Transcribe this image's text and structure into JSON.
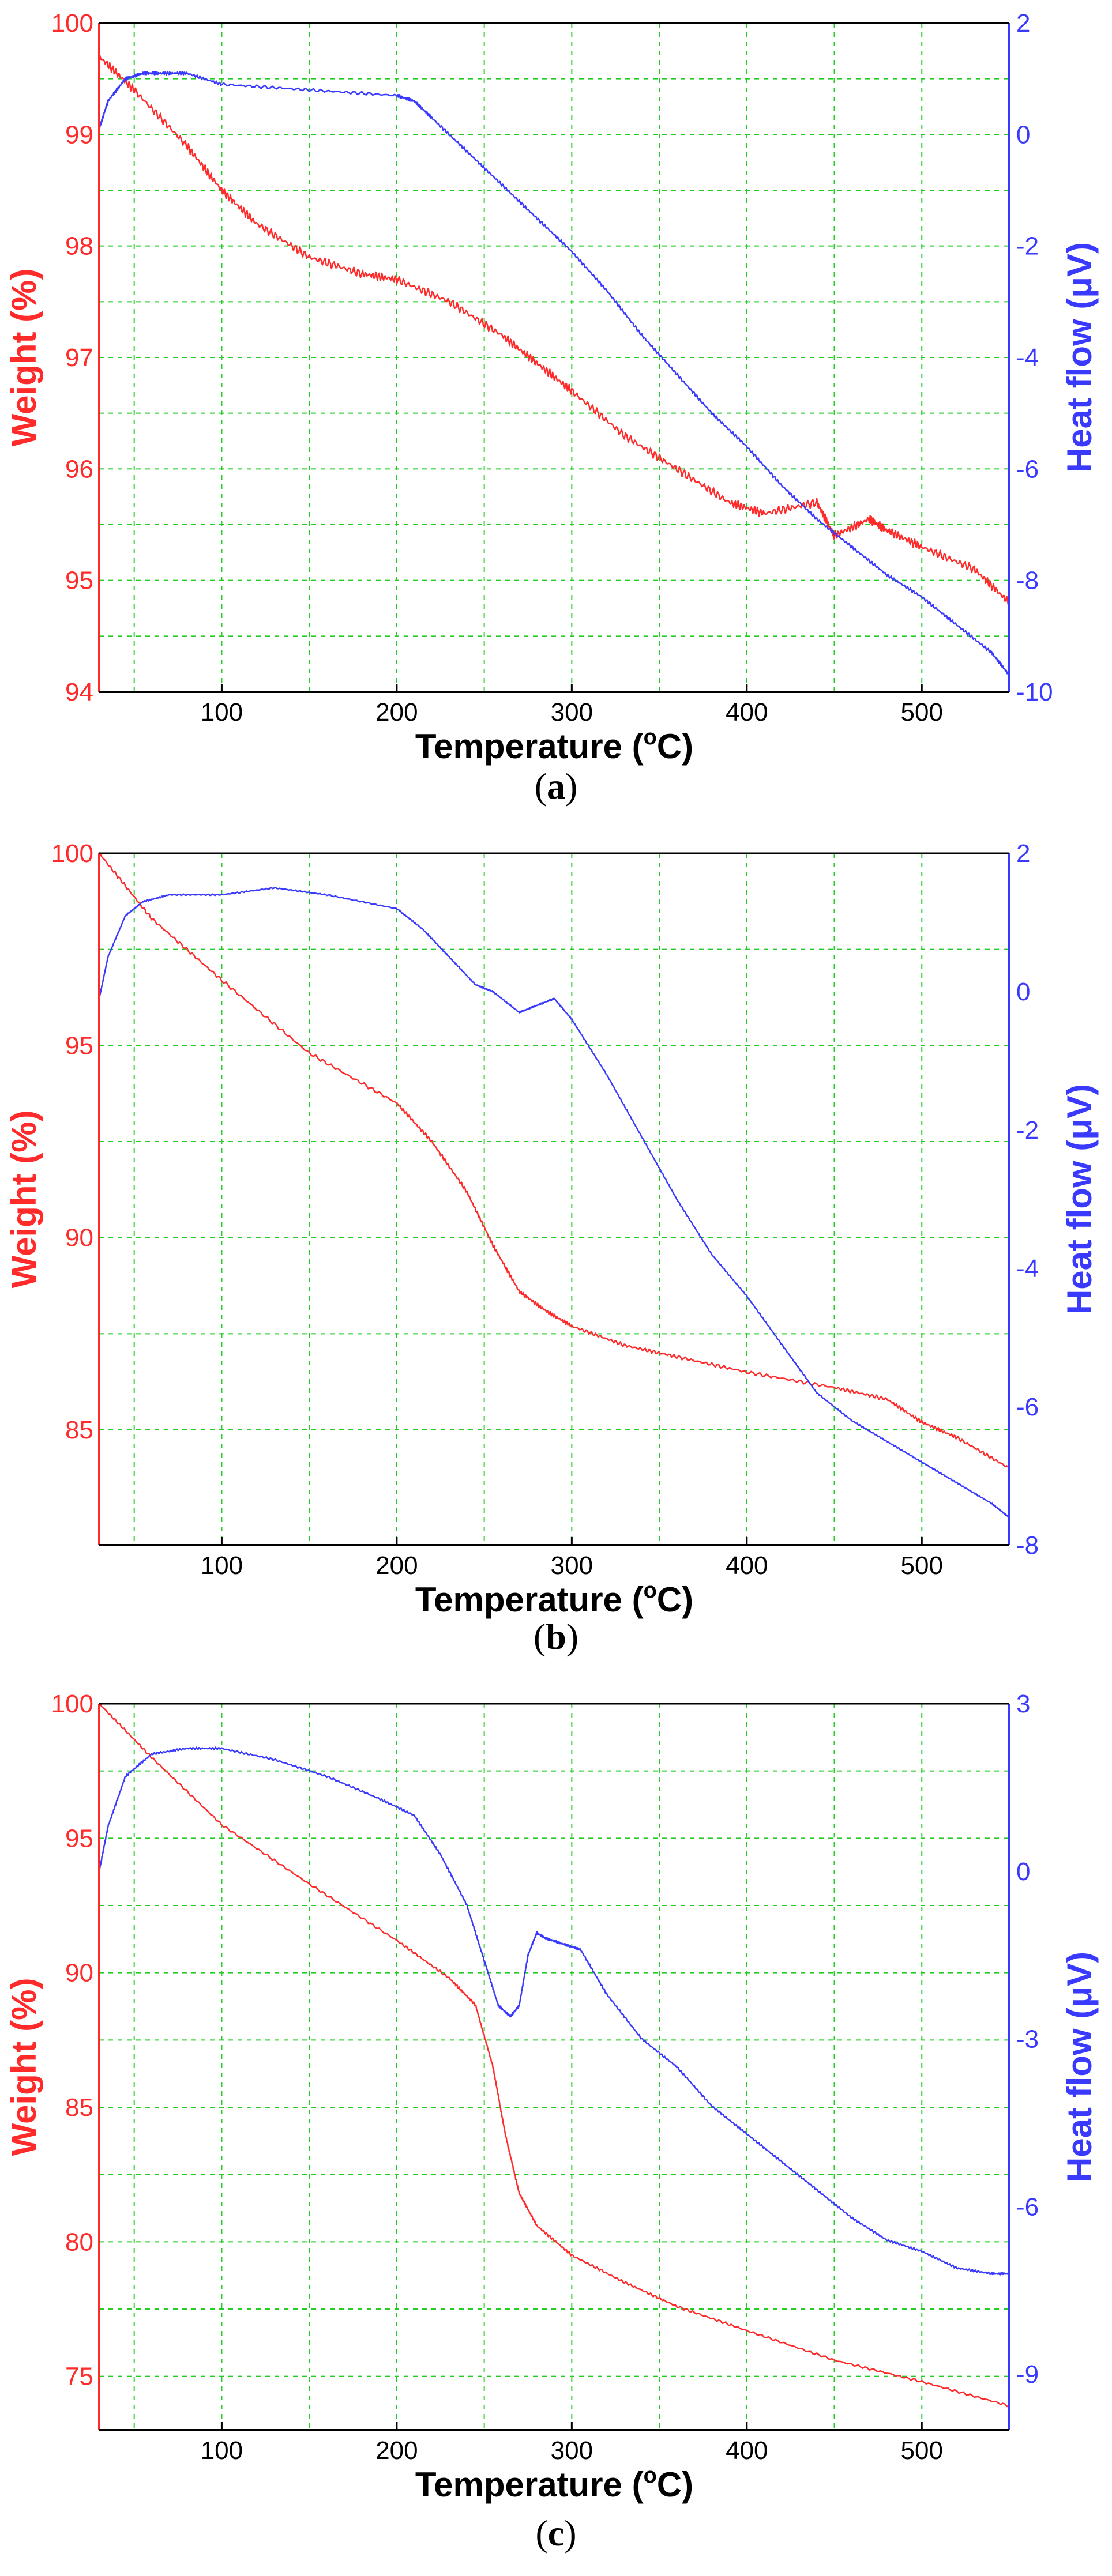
{
  "figure": {
    "colors": {
      "weight": "#ff2a2a",
      "heat": "#3a3aff",
      "grid": "#22cc22",
      "axis": "#000000",
      "caption": "#000000"
    }
  },
  "chart_data": [
    {
      "type": "line",
      "caption": "a",
      "xlabel": "Temperature (°C)",
      "xlabel_main": "Temperature (",
      "xlabel_sup": "o",
      "xlabel_end": "C)",
      "y1label": "Weight (%)",
      "y2label": "Heat flow (μV)",
      "xlim": [
        30,
        550
      ],
      "y1lim": [
        94,
        100
      ],
      "y2lim": [
        -10,
        2
      ],
      "xticks": [
        100,
        200,
        300,
        400,
        500
      ],
      "y1ticks": [
        94,
        95,
        96,
        97,
        98,
        99,
        100
      ],
      "y2ticks": [
        2,
        0,
        -2,
        -4,
        -6,
        -8,
        -10
      ],
      "y2ticklabels": [
        "2",
        "0",
        "-2",
        "-4",
        "-6",
        "-8",
        "-10"
      ],
      "xgrid": [
        50,
        100,
        150,
        200,
        250,
        300,
        350,
        400,
        450,
        500,
        550
      ],
      "ygrid": [
        94.5,
        95,
        95.5,
        96,
        96.5,
        97,
        97.5,
        98,
        98.5,
        99,
        99.5
      ],
      "series": [
        {
          "name": "Weight (%)",
          "axis": "left",
          "color": "#ff2a2a",
          "x": [
            30,
            50,
            80,
            100,
            120,
            150,
            180,
            200,
            230,
            260,
            280,
            300,
            330,
            360,
            390,
            410,
            440,
            450,
            470,
            480,
            500,
            530,
            550
          ],
          "y": [
            99.7,
            99.4,
            98.9,
            98.5,
            98.2,
            97.9,
            97.75,
            97.7,
            97.5,
            97.2,
            96.95,
            96.7,
            96.3,
            96.0,
            95.7,
            95.6,
            95.7,
            95.4,
            95.55,
            95.45,
            95.3,
            95.1,
            94.8
          ],
          "noise": 0.04
        },
        {
          "name": "Heat flow (μV)",
          "axis": "right",
          "color": "#3a3aff",
          "x": [
            30,
            35,
            45,
            55,
            65,
            80,
            100,
            150,
            200,
            210,
            220,
            240,
            260,
            280,
            300,
            320,
            340,
            360,
            380,
            400,
            420,
            440,
            460,
            480,
            500,
            520,
            540,
            550
          ],
          "y": [
            0.1,
            0.6,
            1.0,
            1.1,
            1.1,
            1.1,
            0.9,
            0.8,
            0.7,
            0.6,
            0.3,
            -0.3,
            -0.9,
            -1.5,
            -2.1,
            -2.8,
            -3.6,
            -4.3,
            -5.0,
            -5.6,
            -6.3,
            -6.9,
            -7.4,
            -7.9,
            -8.3,
            -8.8,
            -9.3,
            -9.7
          ],
          "noise": 0.03
        }
      ]
    },
    {
      "type": "line",
      "caption": "b",
      "xlabel": "Temperature (°C)",
      "xlabel_main": "Temperature (",
      "xlabel_sup": "o",
      "xlabel_end": "C)",
      "y1label": "Weight (%)",
      "y2label": "Heat flow (μV)",
      "xlim": [
        30,
        550
      ],
      "y1lim": [
        82,
        100
      ],
      "y2lim": [
        -8,
        2
      ],
      "xticks": [
        100,
        200,
        300,
        400,
        500
      ],
      "y1ticks": [
        85,
        90,
        95,
        100
      ],
      "y2ticks": [
        2,
        0,
        -2,
        -4,
        -6,
        -8
      ],
      "y2ticklabels": [
        "2",
        "0",
        "-2",
        "-4",
        "-6",
        "-8"
      ],
      "xgrid": [
        50,
        100,
        150,
        200,
        250,
        300,
        350,
        400,
        450,
        500,
        550
      ],
      "ygrid": [
        85,
        87.5,
        90,
        92.5,
        95,
        97.5
      ],
      "series": [
        {
          "name": "Weight (%)",
          "axis": "left",
          "color": "#ff2a2a",
          "x": [
            30,
            60,
            100,
            150,
            200,
            220,
            240,
            255,
            270,
            285,
            300,
            330,
            360,
            400,
            450,
            480,
            500,
            520,
            550
          ],
          "y": [
            100,
            98.3,
            96.7,
            94.8,
            93.5,
            92.5,
            91.2,
            89.8,
            88.6,
            88.1,
            87.7,
            87.2,
            86.9,
            86.5,
            86.1,
            85.8,
            85.2,
            84.8,
            84.0
          ],
          "noise": 0.05
        },
        {
          "name": "Heat flow (μV)",
          "axis": "right",
          "color": "#3a3aff",
          "x": [
            30,
            35,
            45,
            55,
            70,
            100,
            130,
            160,
            200,
            215,
            230,
            245,
            255,
            270,
            280,
            290,
            300,
            320,
            340,
            360,
            380,
            400,
            420,
            440,
            460,
            480,
            500,
            520,
            540,
            550
          ],
          "y": [
            -0.1,
            0.5,
            1.1,
            1.3,
            1.4,
            1.4,
            1.5,
            1.4,
            1.2,
            0.9,
            0.5,
            0.1,
            0.0,
            -0.3,
            -0.2,
            -0.1,
            -0.4,
            -1.2,
            -2.1,
            -3.0,
            -3.8,
            -4.4,
            -5.1,
            -5.8,
            -6.2,
            -6.5,
            -6.8,
            -7.1,
            -7.4,
            -7.6
          ],
          "noise": 0.01
        }
      ]
    },
    {
      "type": "line",
      "caption": "c",
      "xlabel": "Temperature (°C)",
      "xlabel_main": "Temperature (",
      "xlabel_sup": "o",
      "xlabel_end": "C)",
      "y1label": "Weight (%)",
      "y2label": "Heat flow (μV)",
      "xlim": [
        30,
        550
      ],
      "y1lim": [
        73,
        100
      ],
      "y2lim": [
        -10,
        3
      ],
      "xticks": [
        100,
        200,
        300,
        400,
        500
      ],
      "y1ticks": [
        75,
        80,
        85,
        90,
        95,
        100
      ],
      "y2ticks": [
        3,
        0,
        -3,
        -6,
        -9
      ],
      "y2ticklabels": [
        "3",
        "0",
        "-3",
        "-6",
        "-9"
      ],
      "xgrid": [
        50,
        100,
        150,
        200,
        250,
        300,
        350,
        400,
        450,
        500,
        550
      ],
      "ygrid": [
        75,
        77.5,
        80,
        82.5,
        85,
        87.5,
        90,
        92.5,
        95,
        97.5
      ],
      "series": [
        {
          "name": "Weight (%)",
          "axis": "left",
          "color": "#ff2a2a",
          "x": [
            30,
            60,
            100,
            150,
            200,
            230,
            245,
            255,
            262,
            270,
            280,
            300,
            330,
            360,
            400,
            450,
            500,
            550
          ],
          "y": [
            100,
            98,
            95.5,
            93.3,
            91.2,
            89.8,
            88.8,
            86.5,
            84.0,
            81.8,
            80.6,
            79.5,
            78.5,
            77.6,
            76.7,
            75.6,
            74.8,
            73.9
          ],
          "noise": 0.05
        },
        {
          "name": "Heat flow (μV)",
          "axis": "right",
          "color": "#3a3aff",
          "x": [
            30,
            35,
            45,
            60,
            80,
            100,
            130,
            160,
            190,
            210,
            225,
            240,
            250,
            258,
            265,
            270,
            275,
            280,
            285,
            295,
            305,
            320,
            340,
            360,
            380,
            400,
            420,
            440,
            460,
            480,
            500,
            520,
            540,
            550
          ],
          "y": [
            0.0,
            0.8,
            1.7,
            2.1,
            2.2,
            2.2,
            2.0,
            1.7,
            1.3,
            1.0,
            0.3,
            -0.6,
            -1.6,
            -2.4,
            -2.6,
            -2.4,
            -1.5,
            -1.1,
            -1.2,
            -1.3,
            -1.4,
            -2.2,
            -3.0,
            -3.5,
            -4.2,
            -4.7,
            -5.2,
            -5.7,
            -6.2,
            -6.6,
            -6.8,
            -7.1,
            -7.2,
            -7.2
          ],
          "noise": 0.02
        }
      ]
    }
  ]
}
